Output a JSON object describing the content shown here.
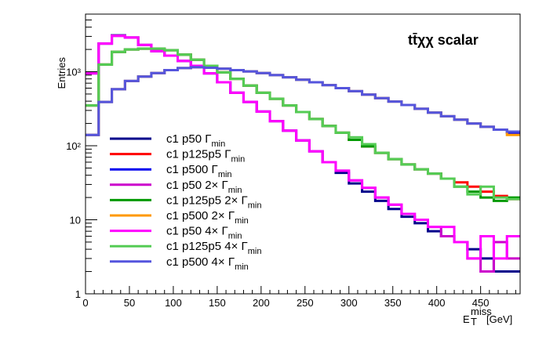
{
  "chart_data": {
    "type": "line",
    "title": "tt̄χχ  scalar",
    "xlabel": "E_T^miss [GeV]",
    "ylabel": "Entries",
    "xlim": [
      0,
      495
    ],
    "ylim": [
      1,
      6000
    ],
    "log_y": true,
    "grid": false,
    "legend_position": "bottom-left",
    "x_ticks": [
      0,
      50,
      100,
      150,
      200,
      250,
      300,
      350,
      400,
      450
    ],
    "y_tick_labels": [
      "1",
      "10",
      "10²",
      "10³"
    ],
    "bin_edges": [
      0,
      15,
      30,
      45,
      60,
      75,
      90,
      105,
      120,
      135,
      150,
      165,
      180,
      195,
      210,
      225,
      240,
      255,
      270,
      285,
      300,
      315,
      330,
      345,
      360,
      375,
      390,
      405,
      420,
      435,
      450,
      465,
      480,
      495
    ],
    "series": [
      {
        "name": "c1 p50 Γ_min",
        "label_main": "c1 p50 Γ",
        "label_sub": "min",
        "color": "#00008b",
        "width": 3,
        "values": [
          950,
          2400,
          3100,
          2900,
          2300,
          1900,
          1650,
          1400,
          1200,
          950,
          720,
          520,
          390,
          290,
          215,
          160,
          118,
          84,
          60,
          43,
          31,
          24,
          18,
          14,
          11,
          9,
          7,
          6,
          5,
          4,
          3,
          2,
          2
        ]
      },
      {
        "name": "c1 p125p5 Γ_min",
        "label_main": "c1 p125p5 Γ",
        "label_sub": "min",
        "color": "#ff0000",
        "width": 3,
        "values": [
          350,
          1250,
          1850,
          2000,
          2050,
          2050,
          1950,
          1700,
          1450,
          1200,
          980,
          800,
          650,
          520,
          430,
          350,
          285,
          230,
          185,
          150,
          120,
          98,
          80,
          66,
          56,
          48,
          42,
          36,
          32,
          28,
          24,
          21,
          19
        ]
      },
      {
        "name": "c1 p500 Γ_min",
        "label_main": "c1 p500 Γ",
        "label_sub": "min",
        "color": "#0000ee",
        "width": 3,
        "values": [
          140,
          390,
          580,
          750,
          860,
          960,
          1050,
          1120,
          1150,
          1130,
          1100,
          1050,
          1010,
          960,
          900,
          840,
          780,
          720,
          660,
          600,
          545,
          490,
          440,
          395,
          355,
          315,
          280,
          250,
          225,
          200,
          180,
          165,
          150
        ]
      },
      {
        "name": "c1 p50 2× Γ_min",
        "label_main": "c1 p50 2× Γ",
        "label_sub": "min",
        "color": "#cc00cc",
        "width": 3,
        "values": [
          950,
          2400,
          3050,
          2900,
          2300,
          1900,
          1650,
          1400,
          1200,
          950,
          720,
          520,
          390,
          290,
          215,
          160,
          118,
          84,
          60,
          46,
          34,
          27,
          20,
          16,
          12,
          10,
          8,
          6,
          5,
          3,
          2,
          5,
          3
        ]
      },
      {
        "name": "c1 p125p5 2× Γ_min",
        "label_main": "c1 p125p5 2× Γ",
        "label_sub": "min",
        "color": "#009900",
        "width": 3,
        "values": [
          350,
          1250,
          1850,
          2000,
          2050,
          2050,
          1950,
          1700,
          1450,
          1200,
          980,
          800,
          650,
          520,
          430,
          350,
          285,
          230,
          185,
          150,
          120,
          98,
          80,
          66,
          56,
          48,
          42,
          36,
          28,
          24,
          20,
          18,
          20
        ]
      },
      {
        "name": "c1 p500 2× Γ_min",
        "label_main": "c1 p500 2× Γ",
        "label_sub": "min",
        "color": "#ff9900",
        "width": 3,
        "values": [
          140,
          390,
          580,
          750,
          860,
          960,
          1050,
          1120,
          1150,
          1130,
          1100,
          1050,
          1010,
          960,
          900,
          840,
          780,
          720,
          660,
          600,
          545,
          490,
          440,
          395,
          355,
          315,
          280,
          250,
          225,
          200,
          180,
          165,
          140
        ]
      },
      {
        "name": "c1 p50 4× Γ_min",
        "label_main": "c1 p50 4× Γ",
        "label_sub": "min",
        "color": "#ff00ff",
        "width": 3,
        "values": [
          950,
          2400,
          3050,
          2900,
          2300,
          1900,
          1650,
          1400,
          1200,
          950,
          720,
          520,
          390,
          290,
          215,
          160,
          118,
          84,
          60,
          46,
          34,
          27,
          20,
          16,
          12,
          10,
          8,
          8,
          5,
          3,
          6,
          3,
          6
        ]
      },
      {
        "name": "c1 p125p5 4× Γ_min",
        "label_main": "c1 p125p5 4× Γ",
        "label_sub": "min",
        "color": "#55cc55",
        "width": 3,
        "values": [
          350,
          1250,
          1850,
          2000,
          2050,
          2050,
          1950,
          1700,
          1450,
          1200,
          980,
          800,
          650,
          520,
          430,
          350,
          285,
          230,
          185,
          150,
          130,
          105,
          80,
          66,
          56,
          48,
          42,
          36,
          28,
          22,
          28,
          20,
          19
        ]
      },
      {
        "name": "c1 p500 4× Γ_min",
        "label_main": "c1 p500 4× Γ",
        "label_sub": "min",
        "color": "#5555dd",
        "width": 3,
        "values": [
          140,
          390,
          580,
          750,
          860,
          960,
          1050,
          1120,
          1150,
          1130,
          1100,
          1050,
          1010,
          960,
          900,
          840,
          780,
          720,
          660,
          600,
          545,
          490,
          440,
          395,
          355,
          315,
          280,
          250,
          225,
          200,
          180,
          165,
          155
        ]
      }
    ]
  }
}
